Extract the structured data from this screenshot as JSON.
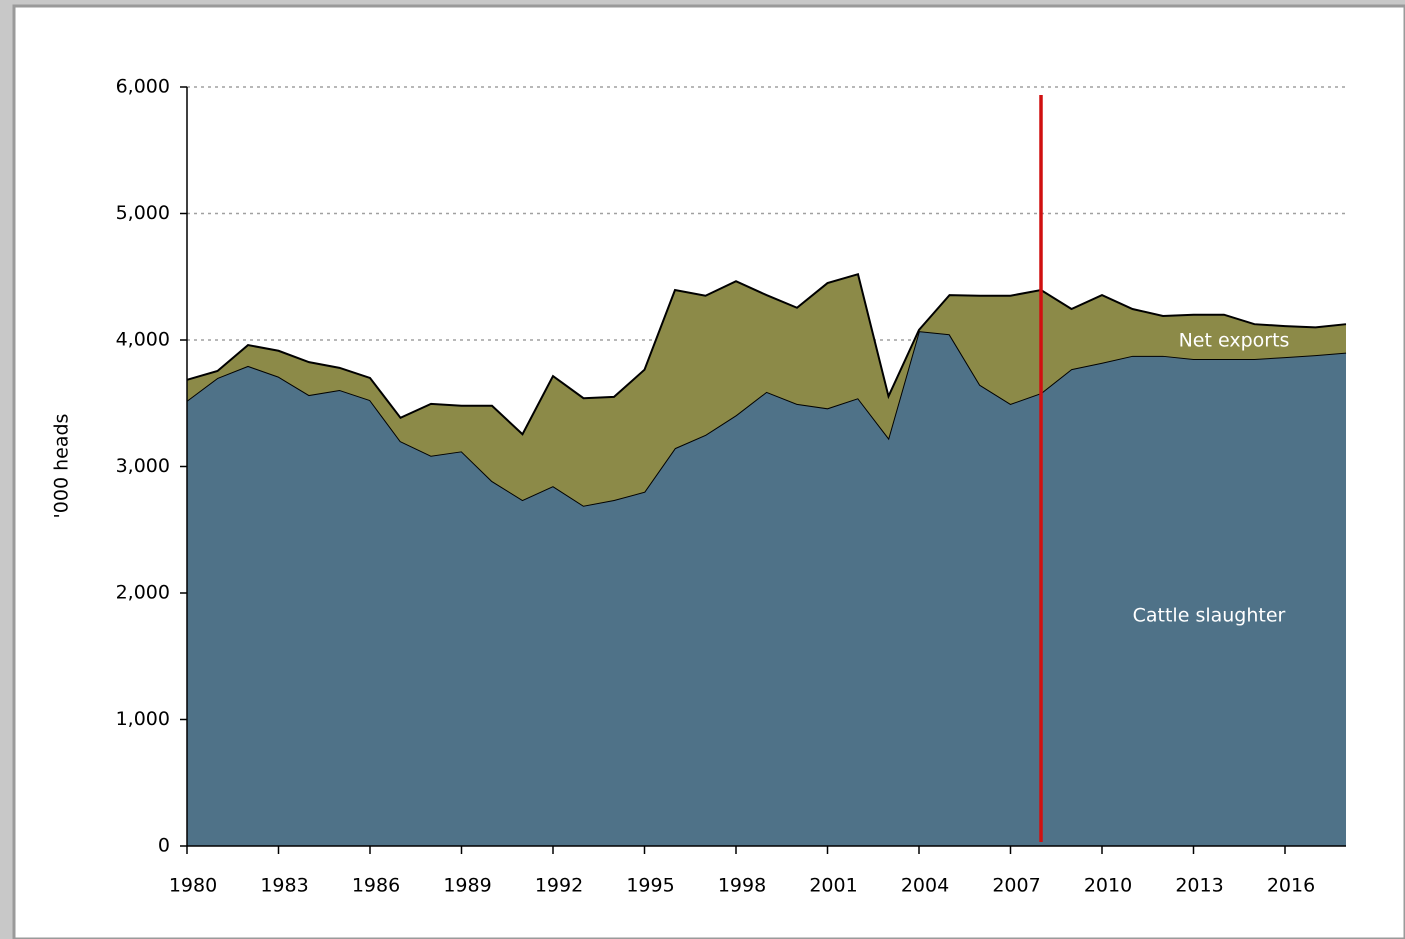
{
  "chart_data": {
    "type": "stacked_area",
    "y_label": "'000 heads",
    "x": [
      1980,
      1981,
      1982,
      1983,
      1984,
      1985,
      1986,
      1987,
      1988,
      1989,
      1990,
      1991,
      1992,
      1993,
      1994,
      1995,
      1996,
      1997,
      1998,
      1999,
      2000,
      2001,
      2002,
      2003,
      2004,
      2005,
      2006,
      2007,
      2008,
      2009,
      2010,
      2011,
      2012,
      2013,
      2014,
      2015,
      2016,
      2017,
      2018
    ],
    "series": [
      {
        "name": "Cattle slaughter",
        "color": "#4f7288",
        "values": [
          3520,
          3700,
          3795,
          3710,
          3565,
          3605,
          3525,
          3200,
          3085,
          3120,
          2885,
          2735,
          2845,
          2690,
          2735,
          2800,
          3145,
          3250,
          3405,
          3590,
          3495,
          3460,
          3540,
          3225,
          4070,
          4045,
          3645,
          3495,
          3580,
          3770,
          3820,
          3875,
          3875,
          3850,
          3850,
          3850,
          3865,
          3880,
          3900
        ]
      },
      {
        "name": "Net exports",
        "color": "#8c8a48",
        "values": [
          165,
          55,
          165,
          205,
          260,
          175,
          175,
          185,
          410,
          360,
          595,
          520,
          870,
          850,
          815,
          965,
          1250,
          1100,
          1060,
          765,
          760,
          990,
          980,
          330,
          10,
          310,
          705,
          855,
          815,
          475,
          535,
          370,
          315,
          350,
          350,
          275,
          245,
          220,
          225
        ]
      }
    ],
    "xlim": [
      1980,
      2018
    ],
    "xticks": [
      1980,
      1983,
      1986,
      1989,
      1992,
      1995,
      1998,
      2001,
      2004,
      2007,
      2010,
      2013,
      2016
    ],
    "ylim": [
      0,
      6000
    ],
    "yticks": [
      0,
      {
        "value": 1000,
        "label": "1,000"
      },
      {
        "value": 2000,
        "label": "2,000"
      },
      {
        "value": 3000,
        "label": "3,000"
      },
      {
        "value": 4000,
        "label": "4,000"
      },
      {
        "value": 5000,
        "label": "5,000"
      },
      {
        "value": 6000,
        "label": "6,000"
      }
    ],
    "grid": true,
    "vline": {
      "x": 2008,
      "color": "#d01010"
    }
  }
}
